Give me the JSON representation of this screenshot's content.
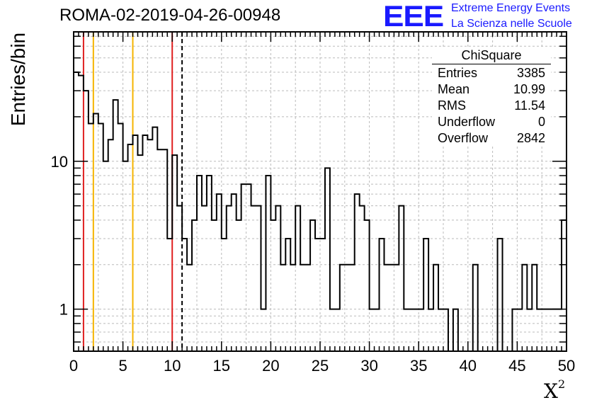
{
  "header": {
    "run_title": "ROMA-02-2019-04-26-00948",
    "logo_text": "EEE",
    "logo_line1": "Extreme Energy Events",
    "logo_line2": "La Scienza nelle Scuole"
  },
  "stats_box": {
    "title": "ChiSquare",
    "rows": [
      {
        "label": "Entries",
        "value": "3385"
      },
      {
        "label": "Mean",
        "value": "10.99"
      },
      {
        "label": "RMS",
        "value": "11.54"
      },
      {
        "label": "Underflow",
        "value": "0"
      },
      {
        "label": "Overflow",
        "value": "2842"
      }
    ]
  },
  "chart_data": {
    "type": "histogram",
    "ylabel": "Entries/bin",
    "xlabel": "X",
    "xlabel_superscript": "2",
    "xlim": [
      0,
      50
    ],
    "ylim": [
      0.52,
      75
    ],
    "yscale": "log",
    "grid": true,
    "bin_width": 0.5,
    "x_ticks": [
      "0",
      "5",
      "10",
      "15",
      "20",
      "25",
      "30",
      "35",
      "40",
      "45",
      "50"
    ],
    "y_ticks": [
      {
        "value": 1,
        "label": "1"
      },
      {
        "value": 10,
        "label": "10"
      }
    ],
    "bin_edges_start": 0,
    "values": [
      40,
      38,
      30,
      18,
      21,
      18,
      10,
      14,
      26,
      18,
      10,
      13,
      15,
      11,
      15,
      14,
      17,
      12,
      12,
      3,
      11,
      5,
      3,
      2,
      4,
      8,
      5,
      8,
      4,
      6,
      3,
      5,
      6,
      4,
      7,
      7,
      5,
      5,
      1,
      8,
      4,
      5,
      2,
      3,
      2,
      5,
      2,
      2,
      4,
      3,
      3,
      9,
      1,
      1,
      2,
      2,
      2,
      6,
      5,
      4,
      1,
      1,
      3,
      2,
      2,
      2,
      5,
      1,
      1,
      1,
      1,
      3,
      1,
      2,
      1,
      1,
      0,
      1,
      0,
      0,
      0,
      2,
      0,
      0,
      0,
      0,
      3,
      0,
      0,
      1,
      1,
      2,
      1,
      2,
      1,
      1,
      1,
      1,
      1,
      4
    ],
    "vertical_lines": [
      {
        "x": 1,
        "color": "#e02020",
        "style": "solid"
      },
      {
        "x": 2,
        "color": "#f5b400",
        "style": "solid"
      },
      {
        "x": 6,
        "color": "#f5b400",
        "style": "solid"
      },
      {
        "x": 10,
        "color": "#e02020",
        "style": "solid"
      },
      {
        "x": 11,
        "color": "#000000",
        "style": "dashed"
      }
    ],
    "line_color": "#000000"
  }
}
